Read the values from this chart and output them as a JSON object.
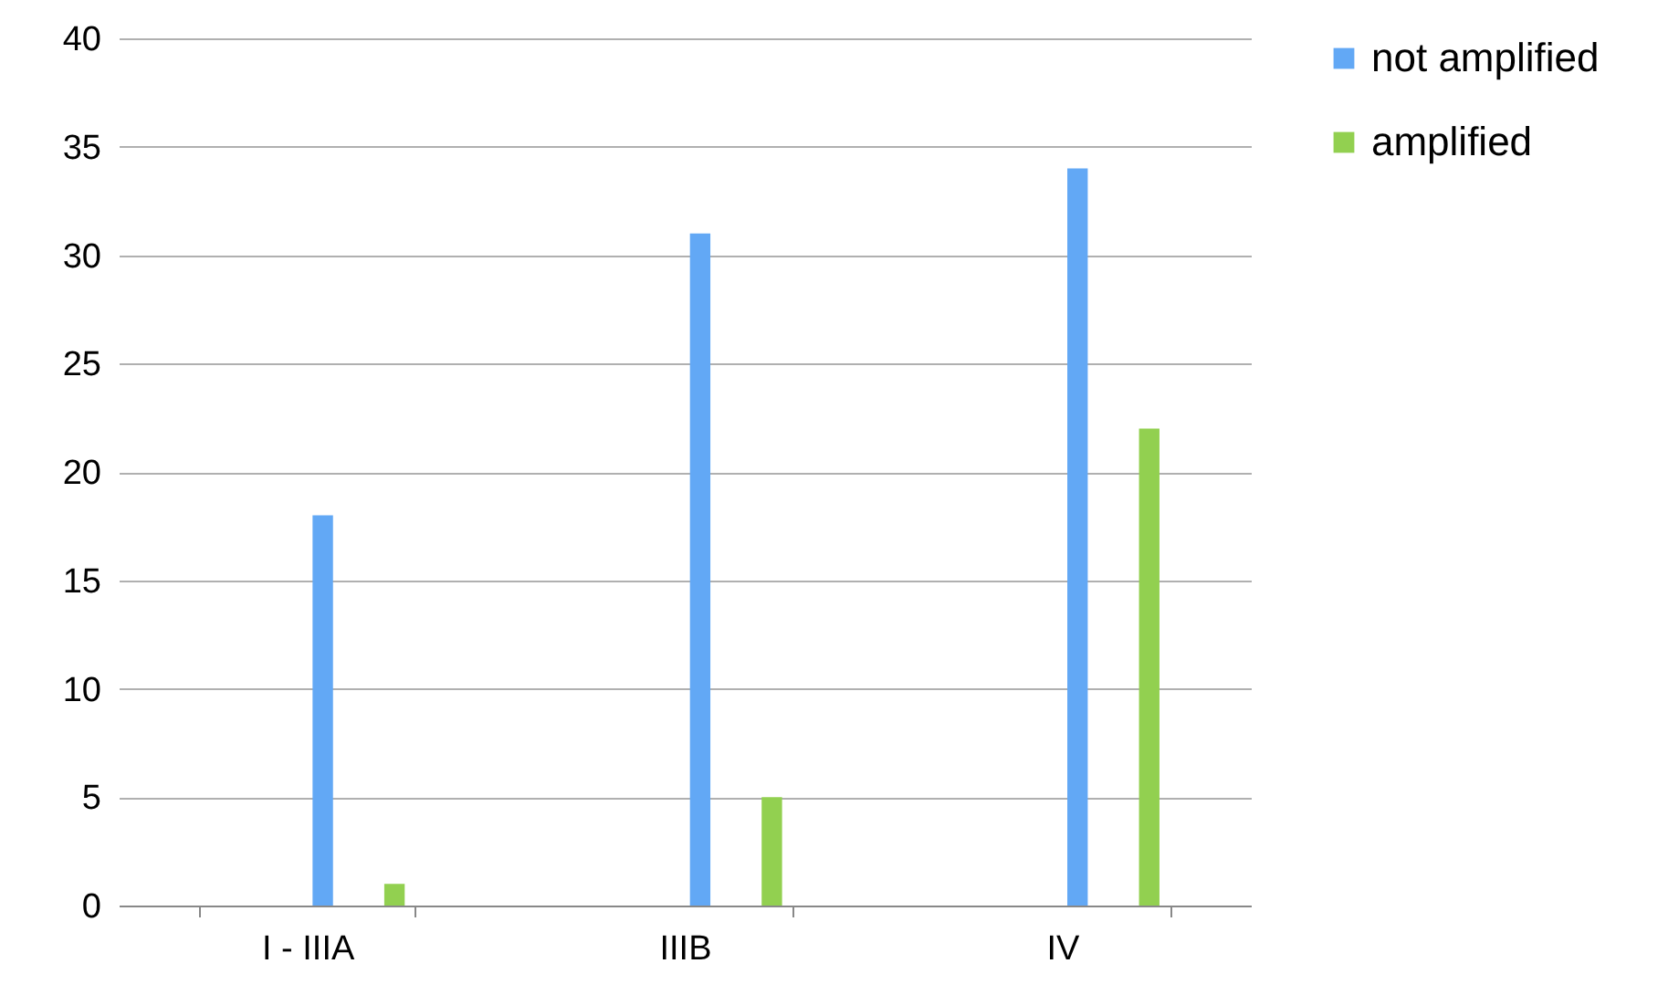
{
  "chart_data": {
    "type": "bar",
    "categories": [
      "I - IIIA",
      "IIIB",
      "IV"
    ],
    "series": [
      {
        "name": "not amplified",
        "color": "#62a8f5",
        "values": [
          18,
          31,
          34
        ]
      },
      {
        "name": "amplified",
        "color": "#92d050",
        "values": [
          1,
          5,
          22
        ]
      }
    ],
    "ylim": [
      0,
      40
    ],
    "yticks": [
      0,
      5,
      10,
      15,
      20,
      25,
      30,
      35,
      40
    ],
    "grid": "y",
    "legend": "right"
  }
}
